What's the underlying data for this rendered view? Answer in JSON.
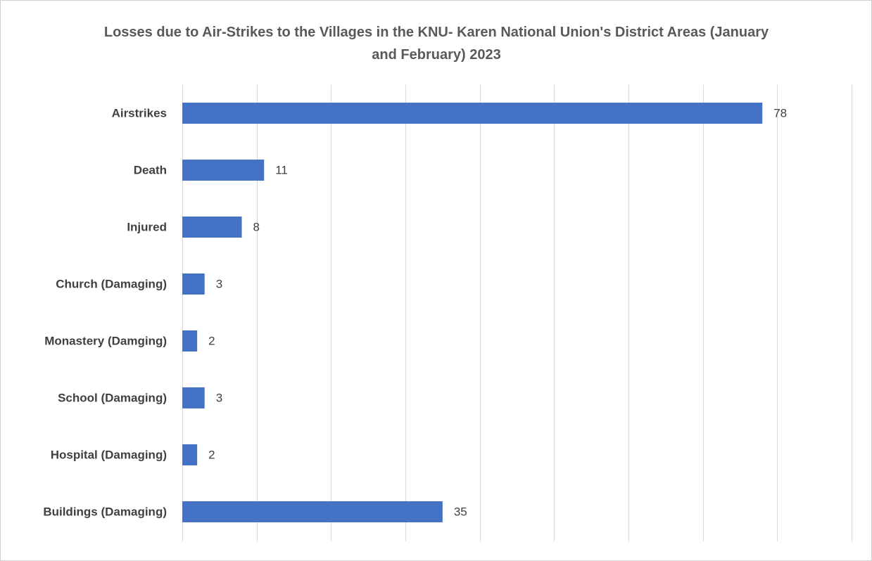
{
  "chart_data": {
    "type": "bar",
    "orientation": "horizontal",
    "title": "Losses due to Air-Strikes to the Villages in the KNU- Karen National Union's District Areas (January and February) 2023",
    "categories": [
      "Airstrikes",
      "Death",
      "Injured",
      "Church (Damaging)",
      "Monastery (Damging)",
      "School (Damaging)",
      "Hospital (Damaging)",
      "Buildings (Damaging)"
    ],
    "values": [
      78,
      11,
      8,
      3,
      2,
      3,
      2,
      35
    ],
    "color": "#4472c4",
    "xlim": [
      0,
      90
    ],
    "xticks": [
      0,
      10,
      20,
      30,
      40,
      50,
      60,
      70,
      80,
      90
    ],
    "grid": true
  }
}
